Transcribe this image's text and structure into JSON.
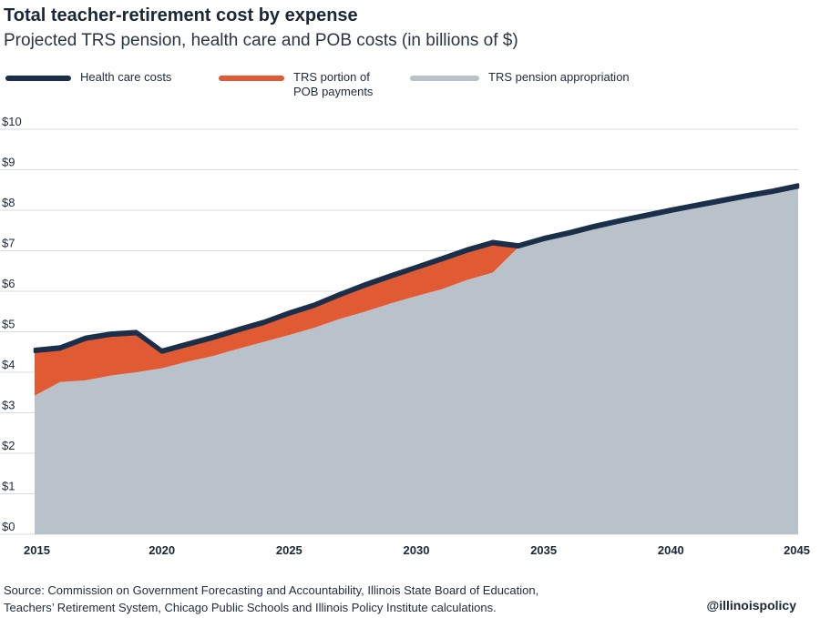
{
  "header": {
    "title": "Total teacher-retirement cost by expense",
    "subtitle": "Projected TRS pension, health care and POB costs (in billions of $)"
  },
  "legend": {
    "health": "Health care costs",
    "pob": "TRS portion of\nPOB payments",
    "pension": "TRS pension appropriation"
  },
  "footer": {
    "source_line1": "Source: Commission on Government Forecasting and Accountability, Illinois State Board of Education,",
    "source_line2": "Teachers’ Retirement System, Chicago Public Schools and Illinois Policy Institute calculations.",
    "handle": "@illinoispolicy"
  },
  "colors": {
    "pension": "#b9c2cb",
    "pob": "#e05a33",
    "health": "#1b2f4b",
    "grid": "#d7dbe0"
  },
  "chart_data": {
    "type": "area",
    "title": "Total teacher-retirement cost by expense",
    "subtitle": "Projected TRS pension, health care and POB costs (in billions of $)",
    "xlabel": "",
    "ylabel": "",
    "ylim": [
      0,
      10
    ],
    "xlim": [
      2015,
      2045
    ],
    "y_ticks": [
      "$0",
      "$1",
      "$2",
      "$3",
      "$4",
      "$5",
      "$6",
      "$7",
      "$8",
      "$9",
      "$10"
    ],
    "x_ticks": [
      "2015",
      "2020",
      "2025",
      "2030",
      "2035",
      "2040",
      "2045"
    ],
    "grid": true,
    "legend_position": "top",
    "stacked": true,
    "x": [
      2015,
      2016,
      2017,
      2018,
      2019,
      2020,
      2021,
      2022,
      2023,
      2024,
      2025,
      2026,
      2027,
      2028,
      2029,
      2030,
      2031,
      2032,
      2033,
      2034,
      2035,
      2036,
      2037,
      2038,
      2039,
      2040,
      2041,
      2042,
      2043,
      2044,
      2045
    ],
    "series": [
      {
        "name": "TRS pension appropriation",
        "values": [
          3.42,
          3.76,
          3.8,
          3.92,
          4.0,
          4.1,
          4.26,
          4.4,
          4.58,
          4.75,
          4.92,
          5.1,
          5.32,
          5.5,
          5.7,
          5.88,
          6.05,
          6.28,
          6.46,
          7.08,
          7.26,
          7.4,
          7.56,
          7.7,
          7.83,
          7.96,
          8.08,
          8.2,
          8.32,
          8.43,
          8.56
        ]
      },
      {
        "name": "TRS portion of POB payments",
        "values": [
          1.08,
          0.8,
          1.0,
          0.98,
          0.94,
          0.38,
          0.39,
          0.42,
          0.43,
          0.44,
          0.5,
          0.52,
          0.56,
          0.62,
          0.64,
          0.67,
          0.71,
          0.7,
          0.7,
          0.0,
          0.0,
          0.0,
          0.0,
          0.0,
          0.0,
          0.0,
          0.0,
          0.0,
          0.0,
          0.0,
          0.0
        ]
      },
      {
        "name": "Health care costs",
        "values": [
          0.08,
          0.08,
          0.08,
          0.08,
          0.08,
          0.08,
          0.08,
          0.08,
          0.08,
          0.08,
          0.08,
          0.08,
          0.08,
          0.08,
          0.08,
          0.08,
          0.08,
          0.08,
          0.08,
          0.08,
          0.08,
          0.08,
          0.08,
          0.08,
          0.08,
          0.08,
          0.08,
          0.08,
          0.08,
          0.08,
          0.08
        ]
      }
    ]
  }
}
